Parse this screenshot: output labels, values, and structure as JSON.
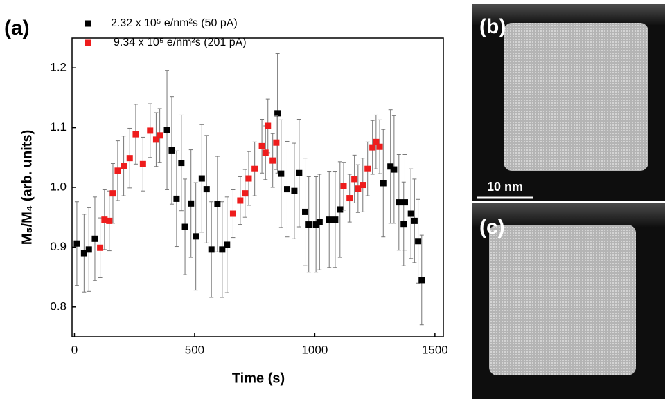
{
  "chart_data": {
    "type": "scatter",
    "panel_labels": [
      "(a)",
      "(b)",
      "(c)"
    ],
    "scale_bar_label": "10 nm",
    "x_label": "Time (s)",
    "y_label": "M₅/M₄ (arb. units)",
    "xlim": [
      -10,
      1535
    ],
    "xticks": [
      0,
      500,
      1000,
      1500
    ],
    "ylim": [
      0.75,
      1.25
    ],
    "yticks": [
      0.8,
      0.9,
      1.0,
      1.1,
      1.2
    ],
    "yticklabels": [
      "0.8",
      "0.9",
      "1.0",
      "1.1",
      "1.2"
    ],
    "series": [
      {
        "name": "2.32 x 10⁵ e/nm²s (50 pA)",
        "color": "#000000",
        "x": [
          10,
          40,
          60,
          85,
          385,
          405,
          425,
          445,
          460,
          485,
          505,
          530,
          550,
          570,
          595,
          615,
          635,
          845,
          860,
          885,
          915,
          935,
          960,
          975,
          1005,
          1020,
          1060,
          1085,
          1105,
          1285,
          1315,
          1330,
          1350,
          1370,
          1375,
          1400,
          1415,
          1430,
          1445
        ],
        "values": [
          0.906,
          0.89,
          0.896,
          0.914,
          1.096,
          1.062,
          0.981,
          1.041,
          0.934,
          0.973,
          0.918,
          1.015,
          0.997,
          0.896,
          0.972,
          0.896,
          0.904,
          1.124,
          1.023,
          0.997,
          0.994,
          1.024,
          0.959,
          0.938,
          0.938,
          0.942,
          0.946,
          0.946,
          0.963,
          1.007,
          1.035,
          1.03,
          0.975,
          0.939,
          0.975,
          0.956,
          0.944,
          0.91,
          0.845
        ],
        "errors": [
          0.07,
          0.065,
          0.07,
          0.07,
          0.1,
          0.09,
          0.08,
          0.08,
          0.08,
          0.09,
          0.09,
          0.09,
          0.09,
          0.08,
          0.08,
          0.08,
          0.08,
          0.1,
          0.09,
          0.08,
          0.08,
          0.09,
          0.09,
          0.08,
          0.08,
          0.08,
          0.08,
          0.08,
          0.08,
          0.09,
          0.095,
          0.09,
          0.08,
          0.07,
          0.08,
          0.075,
          0.07,
          0.07,
          0.075
        ]
      },
      {
        "name": "9.34 x 10⁵ e/nm²s (201 pA)",
        "color": "#ee1c1c",
        "x": [
          107,
          125,
          145,
          160,
          180,
          205,
          230,
          255,
          285,
          315,
          340,
          355,
          660,
          690,
          710,
          725,
          750,
          780,
          795,
          805,
          825,
          840,
          1120,
          1145,
          1165,
          1180,
          1200,
          1220,
          1240,
          1255,
          1270
        ],
        "values": [
          0.899,
          0.946,
          0.944,
          0.99,
          1.028,
          1.036,
          1.049,
          1.089,
          1.039,
          1.095,
          1.08,
          1.087,
          0.956,
          0.978,
          0.99,
          1.015,
          1.031,
          1.069,
          1.058,
          1.103,
          1.045,
          1.075,
          1.002,
          0.982,
          1.014,
          0.998,
          1.004,
          1.031,
          1.067,
          1.076,
          1.068
        ],
        "errors": [
          0.05,
          0.05,
          0.05,
          0.05,
          0.05,
          0.05,
          0.05,
          0.05,
          0.045,
          0.045,
          0.045,
          0.045,
          0.04,
          0.04,
          0.04,
          0.045,
          0.045,
          0.045,
          0.045,
          0.045,
          0.045,
          0.045,
          0.04,
          0.04,
          0.04,
          0.04,
          0.045,
          0.045,
          0.045,
          0.045,
          0.045
        ]
      }
    ]
  }
}
